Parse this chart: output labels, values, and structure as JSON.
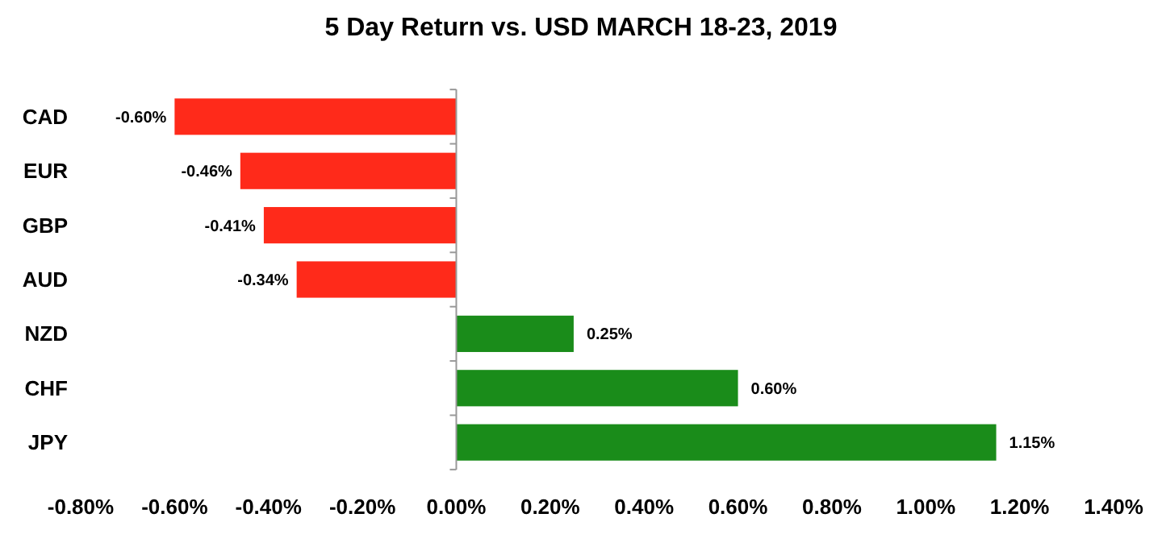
{
  "chart_data": {
    "type": "bar",
    "orientation": "horizontal",
    "title": "5 Day Return vs. USD MARCH 18-23, 2019",
    "categories": [
      "CAD",
      "EUR",
      "GBP",
      "AUD",
      "NZD",
      "CHF",
      "JPY"
    ],
    "values": [
      -0.6,
      -0.46,
      -0.41,
      -0.34,
      0.25,
      0.6,
      1.15
    ],
    "colors": [
      "#ff2a1a",
      "#ff2a1a",
      "#ff2a1a",
      "#ff2a1a",
      "#1a8c1a",
      "#1a8c1a",
      "#1a8c1a"
    ],
    "value_labels": [
      "-0.60%",
      "-0.46%",
      "-0.41%",
      "-0.34%",
      "0.25%",
      "0.60%",
      "1.15%"
    ],
    "xlim": [
      -0.8,
      1.4
    ],
    "xticks": [
      {
        "value": -0.8,
        "label": "-0.80%"
      },
      {
        "value": -0.6,
        "label": "-0.60%"
      },
      {
        "value": -0.4,
        "label": "-0.40%"
      },
      {
        "value": -0.2,
        "label": "-0.20%"
      },
      {
        "value": 0,
        "label": "0.00%"
      },
      {
        "value": 0.2,
        "label": "0.20%"
      },
      {
        "value": 0.4,
        "label": "0.40%"
      },
      {
        "value": 0.6,
        "label": "0.60%"
      },
      {
        "value": 0.8,
        "label": "0.80%"
      },
      {
        "value": 1.0,
        "label": "1.00%"
      },
      {
        "value": 1.2,
        "label": "1.20%"
      },
      {
        "value": 1.4,
        "label": "1.40%"
      }
    ]
  }
}
